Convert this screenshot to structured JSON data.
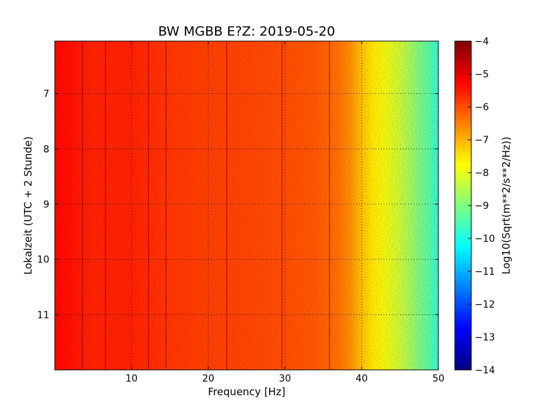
{
  "chart_data": {
    "type": "heatmap",
    "title": "BW MGBB E?Z: 2019-05-20",
    "xlabel": "Frequency [Hz]",
    "ylabel": "Lokalzeit (UTC + 2 Stunde)",
    "xlim": [
      0,
      50
    ],
    "ylim": [
      12,
      6.05
    ],
    "y_inverted": true,
    "x_ticks": [
      10,
      20,
      30,
      40,
      50
    ],
    "y_ticks": [
      7,
      8,
      9,
      10,
      11
    ],
    "grid": true,
    "colormap": "jet",
    "colorbar": {
      "label": "Log10(Sqrt(m**2/s**2/Hz))",
      "range": [
        -14,
        -4
      ],
      "ticks": [
        -4,
        -5,
        -6,
        -7,
        -8,
        -9,
        -10,
        -11,
        -12,
        -13,
        -14
      ]
    },
    "level_profile": {
      "frequency_hz": [
        0,
        5,
        10,
        15,
        20,
        25,
        30,
        34,
        37,
        38.5,
        40,
        41.5,
        43,
        45,
        47,
        49,
        50
      ],
      "log10_amplitude": [
        -5.3,
        -5.6,
        -5.6,
        -5.8,
        -5.9,
        -5.95,
        -6.05,
        -6.15,
        -6.4,
        -6.7,
        -7.2,
        -7.6,
        -7.9,
        -8.3,
        -8.9,
        -9.5,
        -9.9
      ]
    },
    "persistent_lines_hz": [
      3.6,
      6.6,
      12.2,
      14.5,
      22.4,
      29.6,
      35.8
    ],
    "colors": {
      "jet": [
        "#00007f",
        "#0000ff",
        "#007fff",
        "#00ffff",
        "#7fff7f",
        "#ffff00",
        "#ff7f00",
        "#ff0000",
        "#7f0000"
      ]
    }
  }
}
